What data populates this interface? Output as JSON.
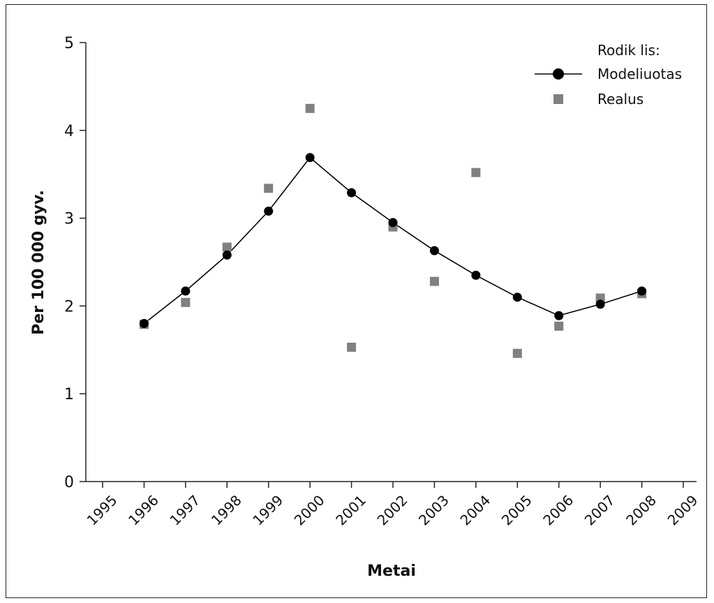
{
  "chart_data": {
    "type": "line",
    "title": "",
    "xlabel": "Metai",
    "ylabel": "Per 100 000 gyv.",
    "xlim": [
      1995,
      2009
    ],
    "ylim": [
      0,
      5
    ],
    "x_ticks": [
      "1995",
      "1996",
      "1997",
      "1998",
      "1999",
      "2000",
      "2001",
      "2002",
      "2003",
      "2004",
      "2005",
      "2006",
      "2007",
      "2008",
      "2009"
    ],
    "y_ticks": [
      "0",
      "1",
      "2",
      "3",
      "4",
      "5"
    ],
    "grid": false,
    "legend": {
      "title": "Rodik lis:",
      "placement": "top-right"
    },
    "series": [
      {
        "name": "Modeliuotas",
        "style": "line-with-markers",
        "color": "#000000",
        "x": [
          1996,
          1997,
          1998,
          1999,
          2000,
          2001,
          2002,
          2003,
          2004,
          2005,
          2006,
          2007,
          2008
        ],
        "y": [
          1.8,
          2.17,
          2.58,
          3.08,
          3.69,
          3.29,
          2.95,
          2.63,
          2.35,
          2.1,
          1.89,
          2.02,
          2.17
        ]
      },
      {
        "name": "Realus",
        "style": "scatter-square",
        "color": "#808080",
        "x": [
          1996,
          1997,
          1998,
          1999,
          2000,
          2001,
          2002,
          2003,
          2004,
          2005,
          2006,
          2007,
          2008
        ],
        "y": [
          1.79,
          2.04,
          2.67,
          3.34,
          4.25,
          1.53,
          2.9,
          2.28,
          3.52,
          1.46,
          1.77,
          2.09,
          2.14
        ]
      }
    ]
  }
}
